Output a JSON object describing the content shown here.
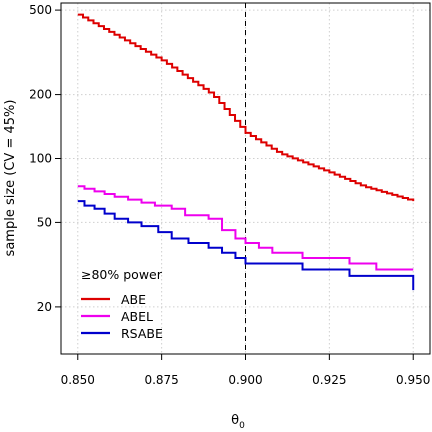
{
  "chart_data": {
    "type": "line",
    "step": true,
    "xlabel": "θ",
    "xlabel_subscript": "0",
    "ylabel": "sample size (CV = 45%)",
    "xlim": [
      0.845,
      0.955
    ],
    "ylim": [
      12,
      540
    ],
    "ylog": true,
    "grid": true,
    "x_ticks": [
      0.85,
      0.875,
      0.9,
      0.925,
      0.95
    ],
    "x_tick_labels": [
      "0.850",
      "0.875",
      "0.900",
      "0.925",
      "0.950"
    ],
    "y_ticks": [
      20,
      50,
      100,
      200,
      500
    ],
    "y_tick_labels": [
      "20",
      "50",
      "100",
      "200",
      "500"
    ],
    "reference_line": {
      "x": 0.9,
      "style": "dashed",
      "color": "#000000"
    },
    "legend": {
      "title": "≥80% power",
      "position": "bottom-left"
    },
    "series": [
      {
        "name": "ABE",
        "color": "#dd0000",
        "points": [
          [
            0.85,
            476
          ],
          [
            0.86,
            390
          ],
          [
            0.875,
            290
          ],
          [
            0.89,
            200
          ],
          [
            0.9,
            132
          ],
          [
            0.91,
            106
          ],
          [
            0.925,
            86
          ],
          [
            0.935,
            74
          ],
          [
            0.95,
            63
          ]
        ]
      },
      {
        "name": "ABEL",
        "color": "#ee00ee",
        "steps": [
          [
            0.85,
            74
          ],
          [
            0.852,
            72
          ],
          [
            0.855,
            70
          ],
          [
            0.858,
            68
          ],
          [
            0.861,
            66
          ],
          [
            0.865,
            64
          ],
          [
            0.869,
            62
          ],
          [
            0.873,
            60
          ],
          [
            0.878,
            58
          ],
          [
            0.882,
            54
          ],
          [
            0.889,
            52
          ],
          [
            0.893,
            50
          ],
          [
            0.893,
            46
          ],
          [
            0.897,
            44
          ],
          [
            0.897,
            42
          ],
          [
            0.9,
            40
          ],
          [
            0.904,
            38
          ],
          [
            0.908,
            36
          ],
          [
            0.917,
            34
          ],
          [
            0.931,
            32
          ],
          [
            0.939,
            30
          ],
          [
            0.95,
            30
          ]
        ]
      },
      {
        "name": "RSABE",
        "color": "#0000cc",
        "steps": [
          [
            0.85,
            63
          ],
          [
            0.852,
            60
          ],
          [
            0.855,
            58
          ],
          [
            0.858,
            55
          ],
          [
            0.861,
            52
          ],
          [
            0.865,
            50
          ],
          [
            0.869,
            48
          ],
          [
            0.874,
            45
          ],
          [
            0.878,
            42
          ],
          [
            0.883,
            40
          ],
          [
            0.889,
            38
          ],
          [
            0.893,
            36
          ],
          [
            0.897,
            34
          ],
          [
            0.9,
            32
          ],
          [
            0.917,
            30
          ],
          [
            0.931,
            28
          ],
          [
            0.95,
            24
          ]
        ]
      }
    ]
  }
}
